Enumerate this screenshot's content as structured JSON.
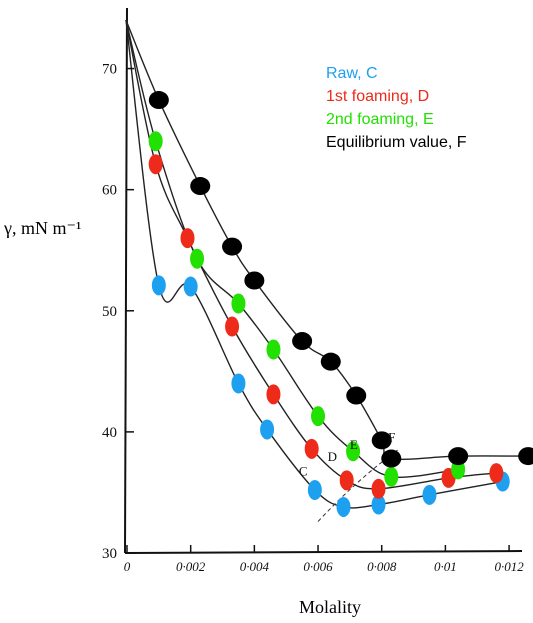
{
  "chart_data": {
    "type": "scatter",
    "title": "",
    "xlabel": "Molality",
    "ylabel": "γ, mN m⁻¹",
    "xlim": [
      0,
      0.0125
    ],
    "ylim": [
      30,
      75
    ],
    "xticks": [
      0,
      0.002,
      0.004,
      0.006,
      0.008,
      0.01,
      0.012
    ],
    "xtick_labels": [
      "0",
      "0·002",
      "0·004",
      "0·006",
      "0·008",
      "0·01",
      "0·012"
    ],
    "yticks": [
      30,
      40,
      50,
      60,
      70
    ],
    "ytick_labels": [
      "30",
      "40",
      "50",
      "60",
      "70"
    ],
    "legend_position": "top-right",
    "grid": false,
    "series": [
      {
        "name": "Raw, C",
        "color": "#1ea0f0",
        "curve_label": "C",
        "points": [
          {
            "x": 0.001,
            "y": 52.1
          },
          {
            "x": 0.002,
            "y": 52.0
          },
          {
            "x": 0.0035,
            "y": 44.0
          },
          {
            "x": 0.0044,
            "y": 40.2
          },
          {
            "x": 0.0059,
            "y": 35.2
          },
          {
            "x": 0.0068,
            "y": 33.8
          },
          {
            "x": 0.0079,
            "y": 34.0
          },
          {
            "x": 0.0095,
            "y": 34.8
          },
          {
            "x": 0.0118,
            "y": 35.9
          }
        ]
      },
      {
        "name": "1st foaming, D",
        "color": "#ee2a1a",
        "curve_label": "D",
        "points": [
          {
            "x": 0.0009,
            "y": 62.1
          },
          {
            "x": 0.0019,
            "y": 56.0
          },
          {
            "x": 0.0033,
            "y": 48.7
          },
          {
            "x": 0.0046,
            "y": 43.1
          },
          {
            "x": 0.0058,
            "y": 38.6
          },
          {
            "x": 0.0069,
            "y": 36.0
          },
          {
            "x": 0.0079,
            "y": 35.3
          },
          {
            "x": 0.0101,
            "y": 36.2
          },
          {
            "x": 0.0116,
            "y": 36.6
          }
        ]
      },
      {
        "name": "2nd foaming, E",
        "color": "#22e000",
        "curve_label": "E",
        "points": [
          {
            "x": 0.0009,
            "y": 64.0
          },
          {
            "x": 0.0022,
            "y": 54.3
          },
          {
            "x": 0.0035,
            "y": 50.6
          },
          {
            "x": 0.0046,
            "y": 46.8
          },
          {
            "x": 0.006,
            "y": 41.3
          },
          {
            "x": 0.0071,
            "y": 38.4
          },
          {
            "x": 0.0083,
            "y": 36.3
          },
          {
            "x": 0.0104,
            "y": 36.9
          }
        ]
      },
      {
        "name": "Equilibrium value, F",
        "color": "#000000",
        "curve_label": "F",
        "points": [
          {
            "x": 0.001,
            "y": 67.4
          },
          {
            "x": 0.0023,
            "y": 60.3
          },
          {
            "x": 0.0033,
            "y": 55.3
          },
          {
            "x": 0.004,
            "y": 52.5
          },
          {
            "x": 0.0055,
            "y": 47.5
          },
          {
            "x": 0.0064,
            "y": 45.8
          },
          {
            "x": 0.0072,
            "y": 43.0
          },
          {
            "x": 0.008,
            "y": 39.3
          },
          {
            "x": 0.0083,
            "y": 37.8
          },
          {
            "x": 0.0104,
            "y": 38.0
          },
          {
            "x": 0.0126,
            "y": 38.0
          }
        ]
      }
    ]
  }
}
